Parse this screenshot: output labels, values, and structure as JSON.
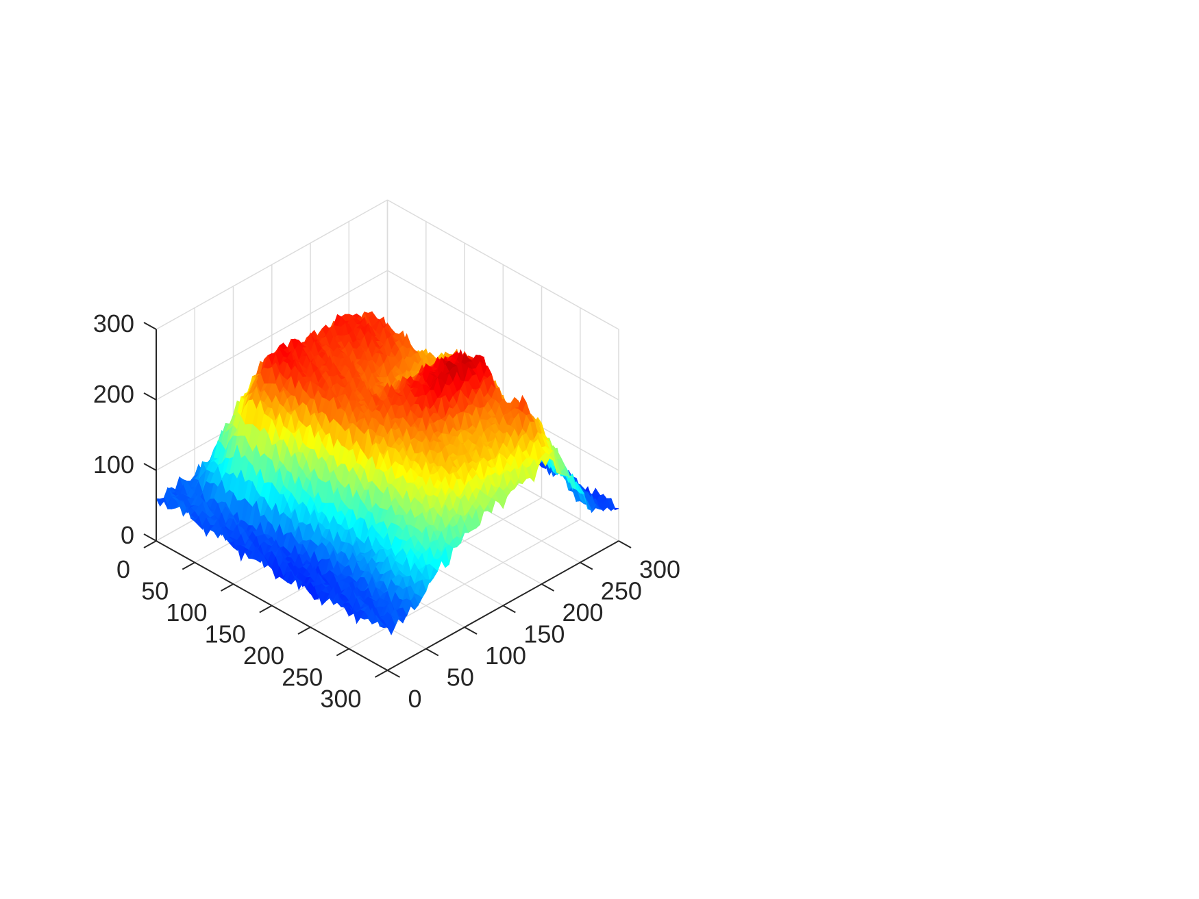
{
  "chart_data": {
    "type": "surface",
    "title": "",
    "xlabel": "",
    "ylabel": "",
    "zlabel": "",
    "grid": true,
    "colormap": "jet",
    "xlim": [
      0,
      300
    ],
    "ylim": [
      0,
      300
    ],
    "zlim": [
      0,
      300
    ],
    "x_ticks": [
      "0",
      "50",
      "100",
      "150",
      "200",
      "250",
      "300"
    ],
    "y_ticks": [
      "0",
      "50",
      "100",
      "150",
      "200",
      "250",
      "300"
    ],
    "z_ticks": [
      "0",
      "100",
      "200",
      "300"
    ],
    "grid_step": 30,
    "heights": [
      [
        60,
        62,
        58,
        65,
        60,
        57,
        63,
        59,
        61,
        66,
        64
      ],
      [
        62,
        64,
        140,
        180,
        175,
        168,
        172,
        150,
        90,
        70,
        66
      ],
      [
        58,
        66,
        200,
        250,
        245,
        238,
        244,
        230,
        120,
        80,
        62
      ],
      [
        55,
        60,
        190,
        240,
        236,
        232,
        240,
        235,
        150,
        85,
        60
      ],
      [
        52,
        58,
        150,
        230,
        232,
        225,
        230,
        220,
        180,
        70,
        58
      ],
      [
        50,
        55,
        120,
        220,
        225,
        215,
        205,
        200,
        210,
        60,
        55
      ],
      [
        48,
        52,
        110,
        210,
        230,
        240,
        250,
        245,
        215,
        70,
        52
      ],
      [
        50,
        56,
        90,
        180,
        215,
        255,
        265,
        260,
        180,
        90,
        50
      ],
      [
        52,
        58,
        100,
        170,
        205,
        200,
        210,
        220,
        130,
        100,
        48
      ],
      [
        55,
        60,
        110,
        160,
        190,
        195,
        200,
        230,
        160,
        70,
        46
      ],
      [
        58,
        62,
        95,
        120,
        140,
        150,
        160,
        170,
        120,
        60,
        50
      ]
    ]
  }
}
